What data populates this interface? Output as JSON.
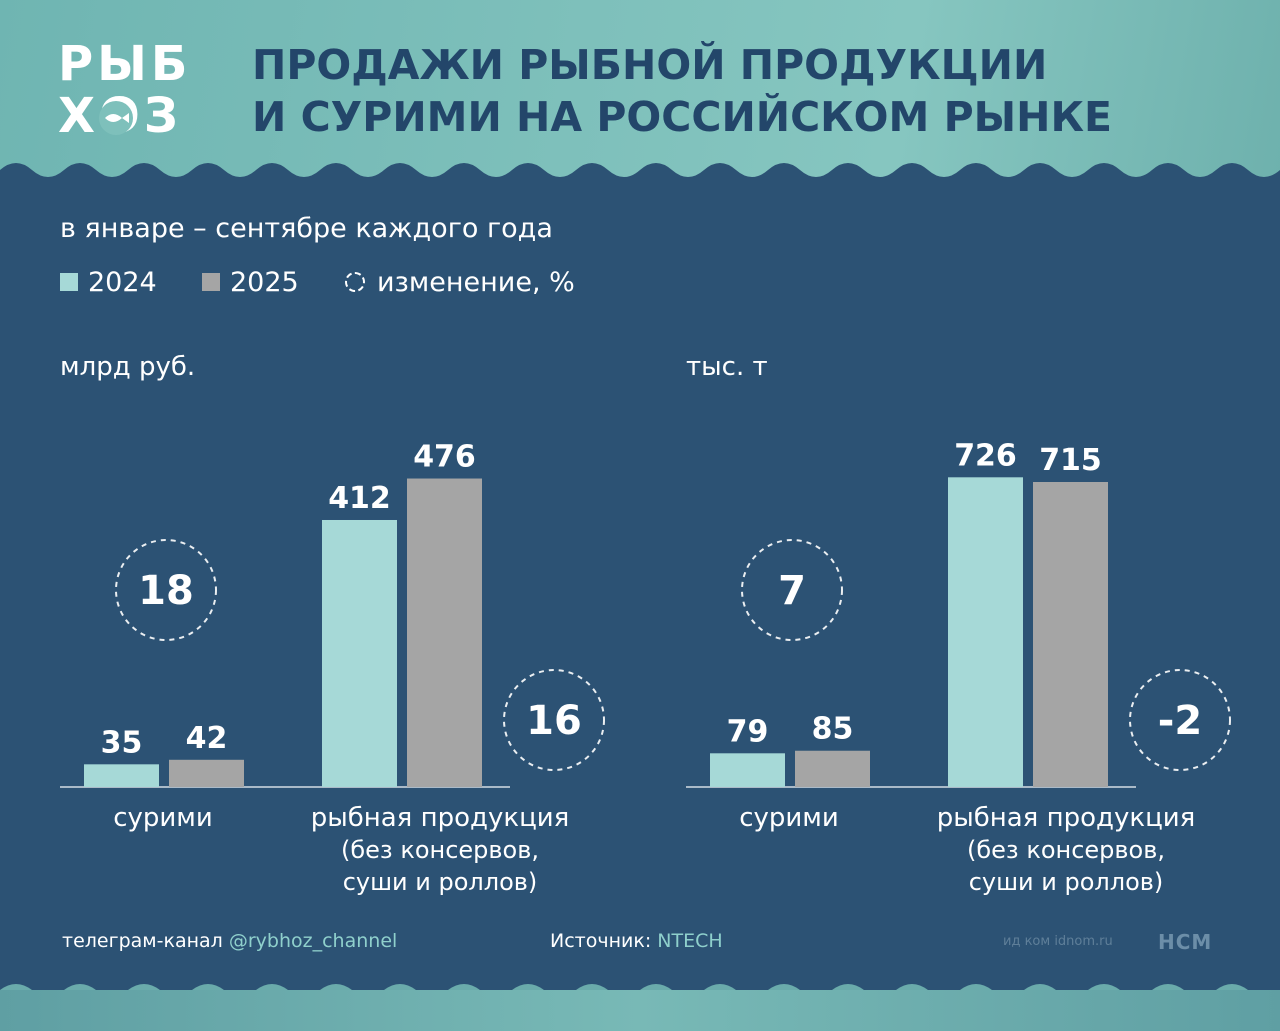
{
  "header": {
    "logo_line1": "РЫБ",
    "logo_line2": "ХОЗ",
    "title_line1": "ПРОДАЖИ РЫБНОЙ ПРОДУКЦИИ",
    "title_line2": "И СУРИМИ НА РОССИЙСКОМ РЫНКЕ"
  },
  "subtitle": "в январе – сентябре каждого года",
  "legend": {
    "item_2024": "2024",
    "item_2025": "2025",
    "item_change": "изменение, %"
  },
  "colors": {
    "series_2024": "#a6d9d7",
    "series_2025": "#a5a5a5",
    "background": "#2c5274",
    "title": "#23466a"
  },
  "chart_data": [
    {
      "type": "bar",
      "unit": "млрд руб.",
      "categories": [
        {
          "label_lines": [
            "сурими"
          ],
          "change": "18",
          "change_position": "upper-left"
        },
        {
          "label_lines": [
            "рыбная продукция",
            "(без консервов,",
            "суши и роллов)"
          ],
          "change": "16",
          "change_position": "lower-right"
        }
      ],
      "series": [
        {
          "name": "2024",
          "values": [
            35,
            412
          ]
        },
        {
          "name": "2025",
          "values": [
            42,
            476
          ]
        }
      ],
      "data_labels": [
        [
          "35",
          "412"
        ],
        [
          "42",
          "476"
        ]
      ],
      "ylim": [
        0,
        520
      ]
    },
    {
      "type": "bar",
      "unit": "тыс. т",
      "categories": [
        {
          "label_lines": [
            "сурими"
          ],
          "change": "7",
          "change_position": "upper-left"
        },
        {
          "label_lines": [
            "рыбная продукция",
            "(без консервов,",
            "суши и роллов)"
          ],
          "change": "-2",
          "change_position": "lower-right"
        }
      ],
      "series": [
        {
          "name": "2024",
          "values": [
            79,
            726
          ]
        },
        {
          "name": "2025",
          "values": [
            85,
            715
          ]
        }
      ],
      "data_labels": [
        [
          "79",
          "726"
        ],
        [
          "85",
          "715"
        ]
      ],
      "ylim": [
        0,
        790
      ]
    }
  ],
  "footer": {
    "telegram_prefix": "телеграм-канал ",
    "telegram_handle": "@rybhoz_channel",
    "source_prefix": "Источник: ",
    "source_name": "NTECH",
    "site": "ид ком idnom.ru",
    "brand": "НСМ"
  }
}
